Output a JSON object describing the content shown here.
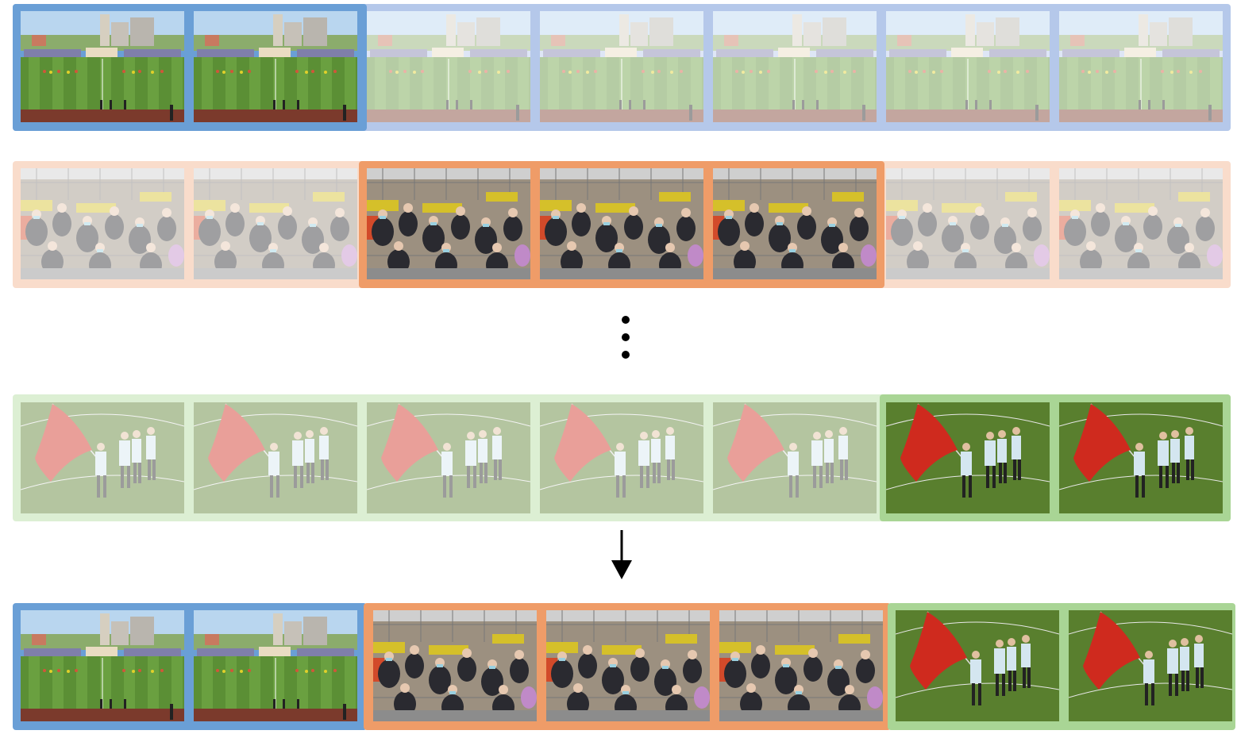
{
  "colors": {
    "blue": "#6a9fd6",
    "blue_light": "#b5c8ea",
    "orange": "#ef9c68",
    "orange_light": "#f9dccb",
    "green": "#a9d595",
    "green_light": "#dcefd3"
  },
  "rows": [
    {
      "id": "row-stadium-field",
      "scene": "stadium-field",
      "frames": [
        1,
        1,
        0,
        0,
        0,
        0,
        0
      ],
      "highlight_group": "blue",
      "highlight_range": [
        0,
        1
      ]
    },
    {
      "id": "row-crowd",
      "scene": "crowd",
      "frames": [
        0,
        0,
        1,
        1,
        1,
        0,
        0
      ],
      "highlight_group": "orange",
      "highlight_range": [
        2,
        4
      ]
    },
    {
      "id": "row-flag",
      "scene": "flag-players",
      "frames": [
        0,
        0,
        0,
        0,
        0,
        1,
        1
      ],
      "highlight_group": "green",
      "highlight_range": [
        5,
        6
      ]
    }
  ],
  "result_row": {
    "id": "row-result",
    "segments": [
      {
        "scene": "stadium-field",
        "group": "blue",
        "count": 2
      },
      {
        "scene": "crowd",
        "group": "orange",
        "count": 3
      },
      {
        "scene": "flag-players",
        "group": "green",
        "count": 2
      }
    ]
  },
  "icons": {
    "ellipsis": "vertical-ellipsis-icon",
    "arrow": "down-arrow-icon"
  }
}
